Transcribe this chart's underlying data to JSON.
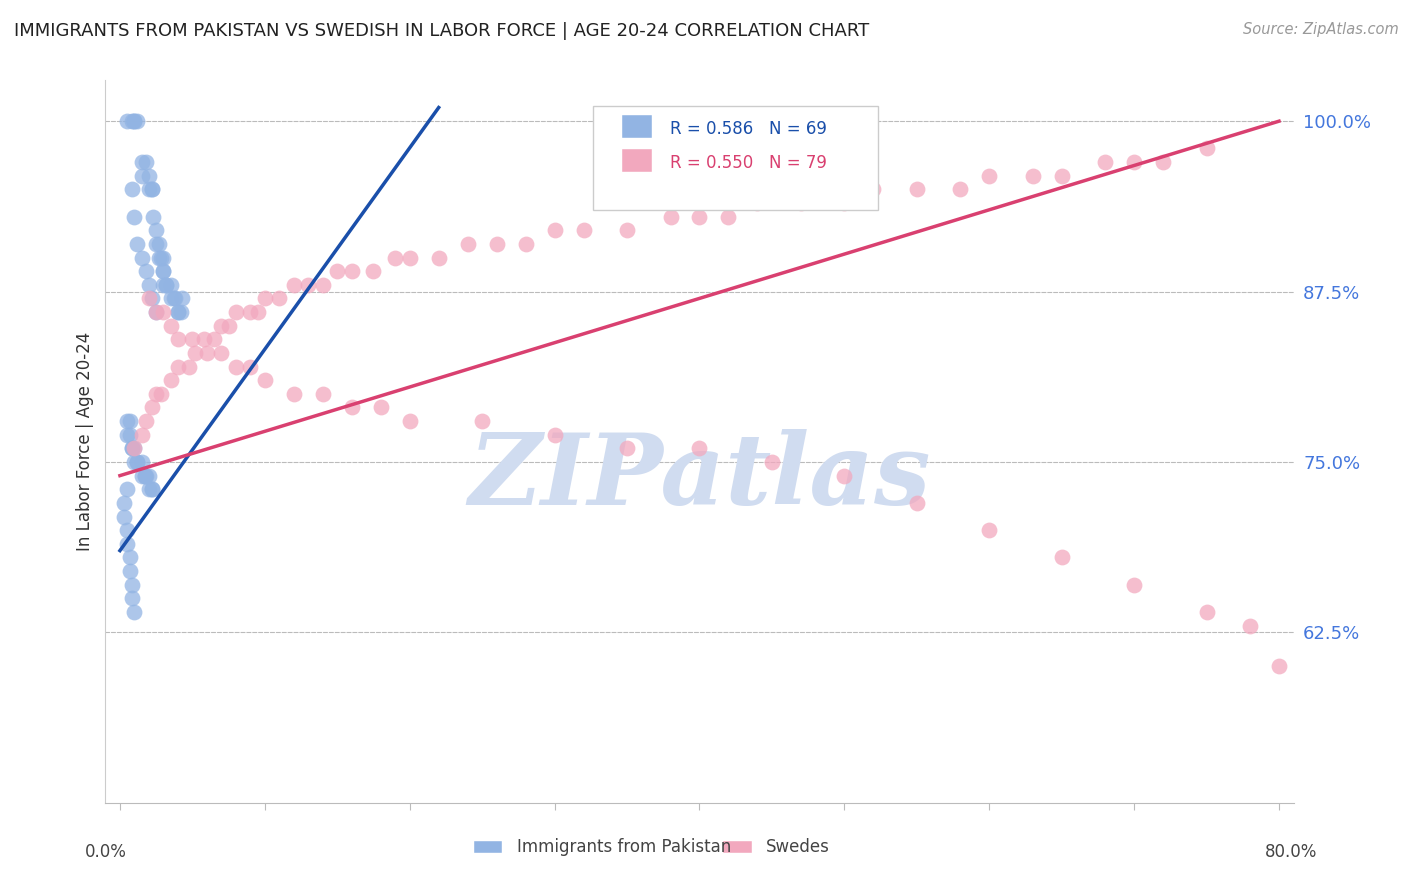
{
  "title": "IMMIGRANTS FROM PAKISTAN VS SWEDISH IN LABOR FORCE | AGE 20-24 CORRELATION CHART",
  "source": "Source: ZipAtlas.com",
  "ylabel": "In Labor Force | Age 20-24",
  "right_yticks": [
    "100.0%",
    "87.5%",
    "75.0%",
    "62.5%"
  ],
  "right_ytick_vals": [
    1.0,
    0.875,
    0.75,
    0.625
  ],
  "legend_label1": "Immigrants from Pakistan",
  "legend_label2": "Swedes",
  "blue_color": "#92B4E3",
  "pink_color": "#F2A8BE",
  "blue_line_color": "#1A4FAA",
  "pink_line_color": "#D94070",
  "background_color": "#FFFFFF",
  "title_color": "#222222",
  "axis_label_color": "#333333",
  "right_tick_color": "#4477DD",
  "watermark_color": "#D0DCF0",
  "grid_color": "#BBBBBB",
  "xlim_data": [
    0.0,
    0.8
  ],
  "ylim_data": [
    0.5,
    1.03
  ],
  "pak_x": [
    0.005,
    0.008,
    0.01,
    0.01,
    0.012,
    0.015,
    0.015,
    0.018,
    0.02,
    0.02,
    0.022,
    0.022,
    0.023,
    0.025,
    0.025,
    0.027,
    0.027,
    0.028,
    0.03,
    0.03,
    0.03,
    0.03,
    0.032,
    0.032,
    0.035,
    0.035,
    0.037,
    0.038,
    0.04,
    0.04,
    0.042,
    0.043,
    0.008,
    0.01,
    0.012,
    0.015,
    0.018,
    0.02,
    0.022,
    0.025,
    0.005,
    0.005,
    0.007,
    0.007,
    0.008,
    0.008,
    0.01,
    0.01,
    0.012,
    0.012,
    0.015,
    0.015,
    0.017,
    0.017,
    0.018,
    0.02,
    0.02,
    0.022,
    0.022,
    0.005,
    0.003,
    0.003,
    0.005,
    0.005,
    0.007,
    0.007,
    0.008,
    0.008,
    0.01
  ],
  "pak_y": [
    1.0,
    1.0,
    1.0,
    1.0,
    1.0,
    0.97,
    0.96,
    0.97,
    0.96,
    0.95,
    0.95,
    0.95,
    0.93,
    0.92,
    0.91,
    0.91,
    0.9,
    0.9,
    0.9,
    0.89,
    0.89,
    0.88,
    0.88,
    0.88,
    0.88,
    0.87,
    0.87,
    0.87,
    0.86,
    0.86,
    0.86,
    0.87,
    0.95,
    0.93,
    0.91,
    0.9,
    0.89,
    0.88,
    0.87,
    0.86,
    0.78,
    0.77,
    0.78,
    0.77,
    0.76,
    0.76,
    0.76,
    0.75,
    0.75,
    0.75,
    0.75,
    0.74,
    0.74,
    0.74,
    0.74,
    0.74,
    0.73,
    0.73,
    0.73,
    0.73,
    0.72,
    0.71,
    0.7,
    0.69,
    0.68,
    0.67,
    0.66,
    0.65,
    0.64
  ],
  "swe_x": [
    0.01,
    0.015,
    0.018,
    0.022,
    0.025,
    0.028,
    0.035,
    0.04,
    0.048,
    0.052,
    0.058,
    0.065,
    0.07,
    0.075,
    0.08,
    0.09,
    0.095,
    0.1,
    0.11,
    0.12,
    0.13,
    0.14,
    0.15,
    0.16,
    0.175,
    0.19,
    0.2,
    0.22,
    0.24,
    0.26,
    0.28,
    0.3,
    0.32,
    0.35,
    0.38,
    0.4,
    0.42,
    0.44,
    0.47,
    0.5,
    0.52,
    0.55,
    0.58,
    0.6,
    0.63,
    0.65,
    0.68,
    0.7,
    0.72,
    0.75,
    0.02,
    0.025,
    0.03,
    0.035,
    0.04,
    0.05,
    0.06,
    0.07,
    0.08,
    0.09,
    0.1,
    0.12,
    0.14,
    0.16,
    0.18,
    0.2,
    0.25,
    0.3,
    0.35,
    0.4,
    0.45,
    0.5,
    0.55,
    0.6,
    0.65,
    0.7,
    0.75,
    0.78,
    0.8
  ],
  "swe_y": [
    0.76,
    0.77,
    0.78,
    0.79,
    0.8,
    0.8,
    0.81,
    0.82,
    0.82,
    0.83,
    0.84,
    0.84,
    0.85,
    0.85,
    0.86,
    0.86,
    0.86,
    0.87,
    0.87,
    0.88,
    0.88,
    0.88,
    0.89,
    0.89,
    0.89,
    0.9,
    0.9,
    0.9,
    0.91,
    0.91,
    0.91,
    0.92,
    0.92,
    0.92,
    0.93,
    0.93,
    0.93,
    0.94,
    0.94,
    0.94,
    0.95,
    0.95,
    0.95,
    0.96,
    0.96,
    0.96,
    0.97,
    0.97,
    0.97,
    0.98,
    0.87,
    0.86,
    0.86,
    0.85,
    0.84,
    0.84,
    0.83,
    0.83,
    0.82,
    0.82,
    0.81,
    0.8,
    0.8,
    0.79,
    0.79,
    0.78,
    0.78,
    0.77,
    0.76,
    0.76,
    0.75,
    0.74,
    0.72,
    0.7,
    0.68,
    0.66,
    0.64,
    0.63,
    0.6
  ],
  "pak_line_x": [
    0.0,
    0.22
  ],
  "pak_line_y": [
    0.685,
    1.01
  ],
  "swe_line_x": [
    0.0,
    0.8
  ],
  "swe_line_y": [
    0.74,
    1.0
  ]
}
